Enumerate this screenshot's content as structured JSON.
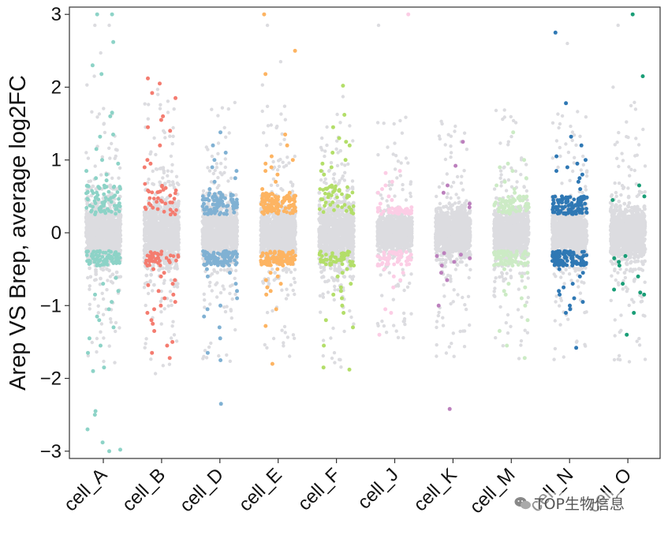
{
  "chart_data": {
    "type": "scatter",
    "subtype": "jitter-strip",
    "ylabel": "Arep VS Brep, average log2FC",
    "xlabel": "",
    "ylim": [
      -3.1,
      3.1
    ],
    "yticks": [
      -3,
      -2,
      -1,
      0,
      1,
      2,
      3
    ],
    "ytick_labels": [
      "−3",
      "−2",
      "−1",
      "0",
      "1",
      "2",
      "3"
    ],
    "grid": false,
    "legend": "none",
    "nonsignificant_color": "#DCDCE0",
    "significance_threshold": 0.25,
    "categories": [
      "cell_A",
      "cell_B",
      "cell_D",
      "cell_E",
      "cell_F",
      "cell_J",
      "cell_K",
      "cell_M",
      "cell_N",
      "cell_O"
    ],
    "series": [
      {
        "category": "cell_A",
        "color": "#8DD3C7",
        "grey_range": [
          -0.6,
          0.6
        ],
        "up": [
          3.0,
          3.0,
          2.62,
          2.3,
          2.18,
          1.65,
          1.6,
          1.35,
          1.32,
          1.15,
          1.0,
          0.95,
          0.85,
          0.8,
          0.75,
          0.72
        ],
        "down": [
          -0.38,
          -0.45,
          -0.62,
          -0.7,
          -0.8,
          -0.85,
          -0.95,
          -1.05,
          -1.15,
          -1.2,
          -1.3,
          -1.45,
          -1.55,
          -1.65,
          -1.85,
          -1.9,
          -2.45,
          -2.5,
          -2.7,
          -2.88,
          -2.98,
          -3.0
        ]
      },
      {
        "category": "cell_B",
        "color": "#F47C70",
        "grey_range": [
          -0.6,
          0.65
        ],
        "up": [
          2.12,
          2.05,
          1.92,
          1.85,
          1.6,
          1.55,
          1.45,
          1.4,
          1.2,
          1.0,
          0.95,
          0.9
        ],
        "down": [
          -0.3,
          -0.38,
          -0.45,
          -0.5,
          -0.55,
          -0.6,
          -0.65,
          -0.7,
          -0.72,
          -0.8,
          -0.85,
          -0.9,
          -0.95,
          -1.0,
          -1.05,
          -1.1,
          -1.2,
          -1.25,
          -1.35,
          -1.5,
          -1.55,
          -1.65,
          -1.72
        ]
      },
      {
        "category": "cell_D",
        "color": "#80B1D3",
        "grey_range": [
          -0.5,
          0.5
        ],
        "up": [
          1.38,
          1.2,
          1.1,
          1.0,
          0.9,
          0.85,
          0.75,
          0.7,
          0.6,
          0.55,
          0.5,
          0.45,
          0.4,
          0.35,
          0.3,
          0.28,
          0.26
        ],
        "down": [
          -0.26,
          -0.28,
          -0.3,
          -0.35,
          -0.4,
          -0.45,
          -0.5,
          -0.55,
          -0.6,
          -0.7,
          -0.8,
          -0.9,
          -1.0,
          -1.05,
          -1.15,
          -1.3,
          -1.45,
          -1.65,
          -1.75,
          -2.35
        ]
      },
      {
        "category": "cell_E",
        "color": "#FDB462",
        "grey_range": [
          -0.5,
          0.5
        ],
        "up": [
          3.0,
          2.5,
          2.18,
          1.35,
          1.2,
          1.05,
          1.0,
          0.95,
          0.9,
          0.85,
          0.8,
          0.7,
          0.6,
          0.55,
          0.5,
          0.45,
          0.4,
          0.35,
          0.3,
          0.27
        ],
        "down": [
          -0.27,
          -0.3,
          -0.35,
          -0.4,
          -0.45,
          -0.5,
          -0.55,
          -0.6,
          -0.65,
          -0.7,
          -0.75,
          -0.8,
          -0.85,
          -1.05,
          -1.28,
          -1.8
        ]
      },
      {
        "category": "cell_F",
        "color": "#B3DE69",
        "grey_range": [
          -0.6,
          0.6
        ],
        "up": [
          2.02,
          1.62,
          1.45,
          1.3,
          1.25,
          1.2,
          1.1,
          1.0,
          0.95,
          0.9,
          0.85,
          0.8,
          0.6
        ],
        "down": [
          -0.4,
          -0.45,
          -0.5,
          -0.55,
          -0.6,
          -0.7,
          -0.75,
          -0.8,
          -0.85,
          -0.9,
          -1.0,
          -1.1,
          -1.2,
          -1.3,
          -1.55,
          -1.85,
          -1.88
        ]
      },
      {
        "category": "cell_J",
        "color": "#FCCDE5",
        "grey_range": [
          -0.35,
          0.3
        ],
        "up": [
          3.0,
          0.85,
          0.82,
          0.7,
          0.65,
          0.6,
          0.55,
          0.5,
          0.45,
          0.4,
          0.35,
          0.3,
          0.27
        ],
        "down": [
          -0.27,
          -0.3,
          -0.35,
          -0.4,
          -0.45,
          -0.5,
          -0.55,
          -0.6,
          -0.65,
          -0.75,
          -1.05,
          -1.1,
          -1.4
        ]
      },
      {
        "category": "cell_K",
        "color": "#BC80BD",
        "grey_range": [
          -0.5,
          0.4
        ],
        "up": [
          1.25,
          0.92,
          0.65,
          0.55,
          0.4,
          0.35
        ],
        "down": [
          -0.28,
          -0.3,
          -0.32,
          -0.35,
          -0.4,
          -0.45,
          -0.55,
          -0.65,
          -1.0,
          -2.42
        ]
      },
      {
        "category": "cell_M",
        "color": "#CCEBC5",
        "grey_range": [
          -0.45,
          0.45
        ],
        "up": [
          1.38,
          1.0,
          0.95,
          0.9,
          0.85,
          0.75,
          0.7,
          0.65,
          0.6,
          0.55,
          0.5,
          0.45,
          0.4,
          0.35,
          0.3
        ],
        "down": [
          -0.3,
          -0.35,
          -0.4,
          -0.45,
          -0.5,
          -0.55,
          -0.6,
          -0.7,
          -0.75,
          -0.8,
          -0.85,
          -0.9,
          -1.0,
          -1.2,
          -1.35,
          -1.55,
          -1.72
        ]
      },
      {
        "category": "cell_N",
        "color": "#2F78B4",
        "grey_range": [
          -0.5,
          0.45
        ],
        "up": [
          2.75,
          1.78,
          1.32,
          1.2,
          1.05,
          1.0,
          0.95,
          0.9,
          0.85,
          0.8,
          0.75,
          0.7,
          0.6,
          0.5,
          0.45,
          0.4,
          0.35,
          0.3,
          0.27
        ],
        "down": [
          -0.27,
          -0.3,
          -0.35,
          -0.4,
          -0.45,
          -0.5,
          -0.55,
          -0.6,
          -0.7,
          -0.75,
          -0.8,
          -0.85,
          -0.9,
          -0.95,
          -1.0,
          -1.05,
          -1.1,
          -1.58
        ]
      },
      {
        "category": "cell_O",
        "color": "#1A9E77",
        "grey_range": [
          -0.5,
          0.5
        ],
        "up": [
          3.0,
          2.15,
          0.65,
          0.5,
          0.45
        ],
        "down": [
          -0.32,
          -0.35,
          -0.4,
          -0.45,
          -0.6,
          -0.7,
          -0.78,
          -0.82,
          -0.85,
          -1.1,
          -1.4
        ]
      }
    ]
  },
  "watermark": {
    "icon": "wechat-icon",
    "text": "TOP生物信息"
  }
}
